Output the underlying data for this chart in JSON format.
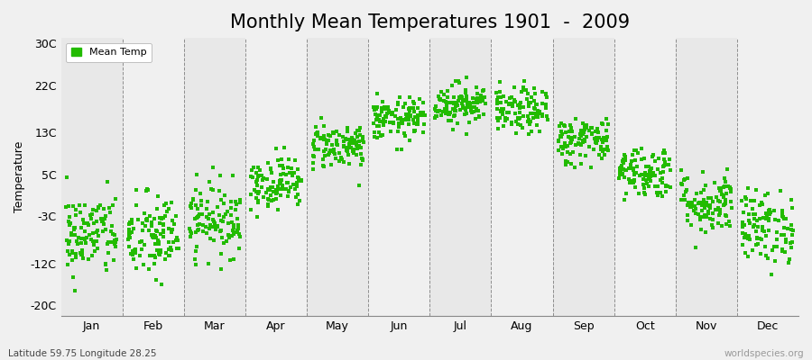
{
  "title": "Monthly Mean Temperatures 1901  -  2009",
  "ylabel": "Temperature",
  "lat_lon_label": "Latitude 59.75 Longitude 28.25",
  "source_label": "worldspecies.org",
  "legend_label": "Mean Temp",
  "months": [
    "Jan",
    "Feb",
    "Mar",
    "Apr",
    "May",
    "Jun",
    "Jul",
    "Aug",
    "Sep",
    "Oct",
    "Nov",
    "Dec"
  ],
  "mean_temps": [
    -6.5,
    -7.0,
    -3.5,
    3.5,
    10.5,
    15.5,
    18.5,
    17.0,
    11.5,
    5.5,
    -0.5,
    -5.0
  ],
  "std_temps": [
    4.0,
    4.2,
    3.5,
    2.5,
    2.2,
    2.0,
    2.0,
    2.2,
    2.3,
    2.5,
    3.0,
    3.5
  ],
  "n_years": 109,
  "seed": 42,
  "dot_color": "#22bb00",
  "dot_size": 5,
  "yticks": [
    -20,
    -12,
    -3,
    5,
    13,
    22,
    30
  ],
  "ytick_labels": [
    "-20C",
    "-12C",
    "-3C",
    "5C",
    "13C",
    "22C",
    "30C"
  ],
  "ylim": [
    -22,
    31
  ],
  "bg_color": "#f0f0f0",
  "band_color_odd": "#e8e8e8",
  "band_color_even": "#f0f0f0",
  "vline_color": "#666666",
  "title_fontsize": 15,
  "axis_label_fontsize": 9,
  "tick_label_fontsize": 9
}
